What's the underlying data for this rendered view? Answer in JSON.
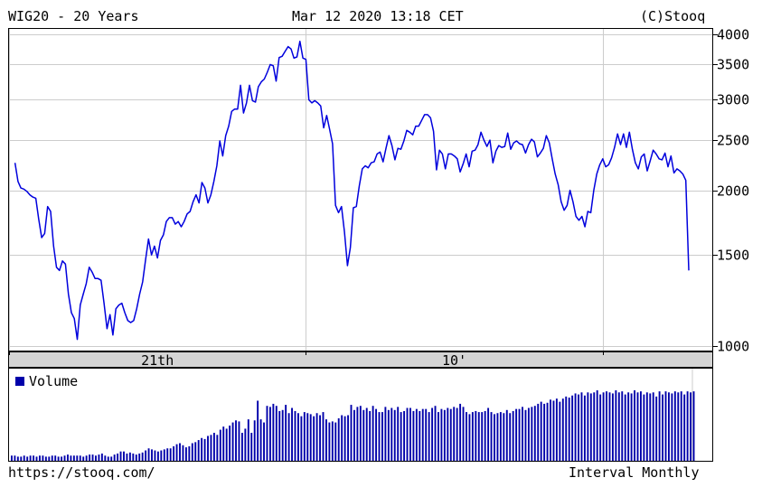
{
  "header": {
    "title": "WIG20 - 20 Years",
    "datetime": "Mar 12 2020 13:18 CET",
    "copyright": "(C)Stooq"
  },
  "footer": {
    "url": "https://stooq.com/",
    "interval": "Interval Monthly"
  },
  "colors": {
    "line": "#0000dd",
    "volume_bar": "#0000aa",
    "grid": "#cccccc",
    "axis_band": "#d4d4d4"
  },
  "chart_data": [
    {
      "type": "line",
      "scale": "log",
      "title": "WIG20 - 20 Years",
      "ylim": [
        980,
        4100
      ],
      "y_ticks": [
        1000,
        1500,
        2000,
        2500,
        3000,
        3500,
        4000
      ],
      "y_tick_labels": [
        "1000",
        "1500",
        "2000",
        "2500",
        "3000",
        "3500",
        "4000"
      ],
      "x_range": [
        2000.0,
        2020.2
      ],
      "x_ticks": [
        2000.0,
        2010.0,
        2020.0
      ],
      "x_tick_labels": [
        "21th",
        "10'"
      ],
      "x_label_positions": [
        2005.0,
        2015.0
      ],
      "series": [
        {
          "points": [
            [
              2000.2,
              2260
            ],
            [
              2000.3,
              2080
            ],
            [
              2000.4,
              2020
            ],
            [
              2000.5,
              2010
            ],
            [
              2000.6,
              1990
            ],
            [
              2000.7,
              1960
            ],
            [
              2000.8,
              1940
            ],
            [
              2000.9,
              1930
            ],
            [
              2001.0,
              1760
            ],
            [
              2001.1,
              1620
            ],
            [
              2001.2,
              1650
            ],
            [
              2001.3,
              1860
            ],
            [
              2001.4,
              1820
            ],
            [
              2001.5,
              1560
            ],
            [
              2001.6,
              1420
            ],
            [
              2001.7,
              1400
            ],
            [
              2001.8,
              1460
            ],
            [
              2001.9,
              1440
            ],
            [
              2002.0,
              1260
            ],
            [
              2002.1,
              1160
            ],
            [
              2002.2,
              1130
            ],
            [
              2002.3,
              1030
            ],
            [
              2002.4,
              1200
            ],
            [
              2002.5,
              1260
            ],
            [
              2002.6,
              1320
            ],
            [
              2002.7,
              1420
            ],
            [
              2002.8,
              1390
            ],
            [
              2002.9,
              1350
            ],
            [
              2003.0,
              1350
            ],
            [
              2003.1,
              1340
            ],
            [
              2003.2,
              1210
            ],
            [
              2003.3,
              1080
            ],
            [
              2003.4,
              1150
            ],
            [
              2003.5,
              1050
            ],
            [
              2003.6,
              1180
            ],
            [
              2003.7,
              1200
            ],
            [
              2003.8,
              1210
            ],
            [
              2003.9,
              1160
            ],
            [
              2004.0,
              1120
            ],
            [
              2004.1,
              1110
            ],
            [
              2004.2,
              1120
            ],
            [
              2004.3,
              1180
            ],
            [
              2004.4,
              1260
            ],
            [
              2004.5,
              1330
            ],
            [
              2004.6,
              1470
            ],
            [
              2004.7,
              1610
            ],
            [
              2004.8,
              1500
            ],
            [
              2004.9,
              1560
            ],
            [
              2005.0,
              1480
            ],
            [
              2005.1,
              1600
            ],
            [
              2005.2,
              1640
            ],
            [
              2005.3,
              1740
            ],
            [
              2005.4,
              1770
            ],
            [
              2005.5,
              1770
            ],
            [
              2005.6,
              1720
            ],
            [
              2005.7,
              1740
            ],
            [
              2005.8,
              1700
            ],
            [
              2005.9,
              1740
            ],
            [
              2006.0,
              1800
            ],
            [
              2006.1,
              1820
            ],
            [
              2006.2,
              1900
            ],
            [
              2006.3,
              1960
            ],
            [
              2006.4,
              1890
            ],
            [
              2006.5,
              2070
            ],
            [
              2006.6,
              2020
            ],
            [
              2006.7,
              1890
            ],
            [
              2006.8,
              1960
            ],
            [
              2006.9,
              2080
            ],
            [
              2007.0,
              2230
            ],
            [
              2007.1,
              2490
            ],
            [
              2007.2,
              2330
            ],
            [
              2007.3,
              2550
            ],
            [
              2007.4,
              2660
            ],
            [
              2007.5,
              2840
            ],
            [
              2007.6,
              2870
            ],
            [
              2007.7,
              2870
            ],
            [
              2007.8,
              3190
            ],
            [
              2007.9,
              2820
            ],
            [
              2008.0,
              2950
            ],
            [
              2008.1,
              3190
            ],
            [
              2008.2,
              2980
            ],
            [
              2008.3,
              2960
            ],
            [
              2008.4,
              3170
            ],
            [
              2008.5,
              3240
            ],
            [
              2008.6,
              3280
            ],
            [
              2008.7,
              3380
            ],
            [
              2008.8,
              3500
            ],
            [
              2008.9,
              3480
            ],
            [
              2009.0,
              3250
            ],
            [
              2009.1,
              3610
            ],
            [
              2009.2,
              3630
            ],
            [
              2009.3,
              3710
            ],
            [
              2009.4,
              3790
            ],
            [
              2009.5,
              3750
            ],
            [
              2009.6,
              3600
            ],
            [
              2009.7,
              3620
            ],
            [
              2009.8,
              3880
            ],
            [
              2009.9,
              3600
            ],
            [
              2010.0,
              3580
            ],
            [
              2010.1,
              2990
            ],
            [
              2010.2,
              2950
            ],
            [
              2010.3,
              2980
            ],
            [
              2010.4,
              2950
            ],
            [
              2010.5,
              2910
            ],
            [
              2010.6,
              2640
            ],
            [
              2010.7,
              2790
            ],
            [
              2010.8,
              2620
            ],
            [
              2010.9,
              2460
            ],
            [
              2011.0,
              1870
            ],
            [
              2011.1,
              1810
            ],
            [
              2011.2,
              1860
            ],
            [
              2011.3,
              1660
            ],
            [
              2011.4,
              1430
            ],
            [
              2011.5,
              1550
            ],
            [
              2011.6,
              1850
            ],
            [
              2011.7,
              1860
            ],
            [
              2011.8,
              2040
            ],
            [
              2011.9,
              2200
            ],
            [
              2012.0,
              2230
            ],
            [
              2012.1,
              2210
            ],
            [
              2012.2,
              2260
            ],
            [
              2012.3,
              2270
            ],
            [
              2012.4,
              2350
            ],
            [
              2012.5,
              2370
            ],
            [
              2012.6,
              2270
            ],
            [
              2012.7,
              2410
            ],
            [
              2012.8,
              2550
            ],
            [
              2012.9,
              2440
            ],
            [
              2013.0,
              2290
            ],
            [
              2013.1,
              2410
            ],
            [
              2013.2,
              2400
            ],
            [
              2013.3,
              2490
            ],
            [
              2013.4,
              2610
            ],
            [
              2013.5,
              2590
            ],
            [
              2013.6,
              2560
            ],
            [
              2013.7,
              2660
            ],
            [
              2013.8,
              2660
            ],
            [
              2013.9,
              2730
            ],
            [
              2014.0,
              2800
            ],
            [
              2014.1,
              2800
            ],
            [
              2014.2,
              2760
            ],
            [
              2014.3,
              2600
            ],
            [
              2014.4,
              2190
            ],
            [
              2014.5,
              2390
            ],
            [
              2014.6,
              2350
            ],
            [
              2014.7,
              2200
            ],
            [
              2014.8,
              2350
            ],
            [
              2014.9,
              2350
            ],
            [
              2015.0,
              2330
            ],
            [
              2015.1,
              2300
            ],
            [
              2015.2,
              2170
            ],
            [
              2015.3,
              2250
            ],
            [
              2015.4,
              2350
            ],
            [
              2015.5,
              2220
            ],
            [
              2015.6,
              2380
            ],
            [
              2015.7,
              2390
            ],
            [
              2015.8,
              2450
            ],
            [
              2015.9,
              2590
            ],
            [
              2016.0,
              2500
            ],
            [
              2016.1,
              2430
            ],
            [
              2016.2,
              2500
            ],
            [
              2016.3,
              2260
            ],
            [
              2016.4,
              2380
            ],
            [
              2016.5,
              2440
            ],
            [
              2016.6,
              2420
            ],
            [
              2016.7,
              2430
            ],
            [
              2016.8,
              2580
            ],
            [
              2016.9,
              2400
            ],
            [
              2017.0,
              2470
            ],
            [
              2017.1,
              2490
            ],
            [
              2017.2,
              2460
            ],
            [
              2017.3,
              2450
            ],
            [
              2017.4,
              2360
            ],
            [
              2017.5,
              2450
            ],
            [
              2017.6,
              2510
            ],
            [
              2017.7,
              2480
            ],
            [
              2017.8,
              2320
            ],
            [
              2017.9,
              2360
            ],
            [
              2018.0,
              2410
            ],
            [
              2018.1,
              2550
            ],
            [
              2018.2,
              2470
            ],
            [
              2018.3,
              2300
            ],
            [
              2018.4,
              2150
            ],
            [
              2018.5,
              2050
            ],
            [
              2018.6,
              1900
            ],
            [
              2018.7,
              1830
            ],
            [
              2018.8,
              1870
            ],
            [
              2018.9,
              2000
            ],
            [
              2019.0,
              1900
            ],
            [
              2019.1,
              1780
            ],
            [
              2019.2,
              1750
            ],
            [
              2019.3,
              1780
            ],
            [
              2019.4,
              1700
            ],
            [
              2019.5,
              1820
            ],
            [
              2019.6,
              1810
            ],
            [
              2019.7,
              2000
            ],
            [
              2019.8,
              2150
            ],
            [
              2019.9,
              2240
            ],
            [
              2020.0,
              2300
            ],
            [
              2020.1,
              2220
            ],
            [
              2020.2,
              2240
            ],
            [
              2020.3,
              2310
            ],
            [
              2020.4,
              2420
            ],
            [
              2020.5,
              2570
            ],
            [
              2020.6,
              2450
            ],
            [
              2020.7,
              2570
            ],
            [
              2020.8,
              2420
            ],
            [
              2020.9,
              2590
            ],
            [
              2021.0,
              2400
            ],
            [
              2021.1,
              2260
            ],
            [
              2021.2,
              2200
            ],
            [
              2021.3,
              2320
            ],
            [
              2021.4,
              2350
            ],
            [
              2021.5,
              2180
            ],
            [
              2021.6,
              2280
            ],
            [
              2021.7,
              2390
            ],
            [
              2021.8,
              2350
            ],
            [
              2021.9,
              2300
            ],
            [
              2022.0,
              2290
            ],
            [
              2022.1,
              2360
            ],
            [
              2022.2,
              2220
            ],
            [
              2022.3,
              2330
            ],
            [
              2022.4,
              2160
            ],
            [
              2022.5,
              2200
            ],
            [
              2022.6,
              2180
            ],
            [
              2022.7,
              2150
            ],
            [
              2022.8,
              2090
            ],
            [
              2022.9,
              1400
            ]
          ]
        }
      ]
    },
    {
      "type": "bar",
      "title": "Volume",
      "legend": [
        "Volume"
      ],
      "legend_position": "top-left",
      "values": [
        5,
        5,
        4,
        4,
        5,
        4,
        5,
        5,
        4,
        5,
        5,
        4,
        4,
        5,
        5,
        4,
        4,
        5,
        6,
        5,
        5,
        5,
        5,
        4,
        5,
        6,
        6,
        5,
        6,
        7,
        5,
        4,
        4,
        6,
        7,
        9,
        9,
        7,
        8,
        7,
        6,
        7,
        8,
        10,
        12,
        11,
        10,
        9,
        10,
        11,
        12,
        12,
        14,
        16,
        17,
        15,
        13,
        14,
        17,
        18,
        20,
        22,
        21,
        24,
        25,
        27,
        25,
        30,
        33,
        31,
        34,
        37,
        39,
        38,
        27,
        31,
        40,
        27,
        39,
        58,
        40,
        37,
        53,
        52,
        55,
        53,
        48,
        49,
        54,
        46,
        51,
        48,
        46,
        43,
        47,
        46,
        45,
        43,
        46,
        44,
        47,
        40,
        37,
        38,
        37,
        41,
        44,
        43,
        44,
        54,
        49,
        52,
        53,
        49,
        51,
        48,
        53,
        50,
        47,
        47,
        52,
        49,
        51,
        49,
        52,
        47,
        48,
        51,
        51,
        48,
        50,
        48,
        50,
        50,
        47,
        51,
        53,
        47,
        50,
        49,
        51,
        50,
        52,
        51,
        55,
        52,
        47,
        45,
        47,
        48,
        47,
        47,
        48,
        51,
        47,
        45,
        46,
        47,
        46,
        49,
        46,
        48,
        50,
        50,
        52,
        49,
        51,
        52,
        53,
        55,
        57,
        55,
        56,
        59,
        58,
        60,
        57,
        60,
        62,
        61,
        63,
        65,
        64,
        66,
        63,
        66,
        65,
        66,
        68,
        64,
        66,
        67,
        66,
        65,
        68,
        66,
        67,
        64,
        66,
        65,
        68,
        66,
        67,
        64,
        66,
        65,
        66,
        62,
        67,
        64,
        67,
        66,
        65,
        67,
        66,
        67,
        64,
        67,
        66,
        67
      ]
    }
  ]
}
